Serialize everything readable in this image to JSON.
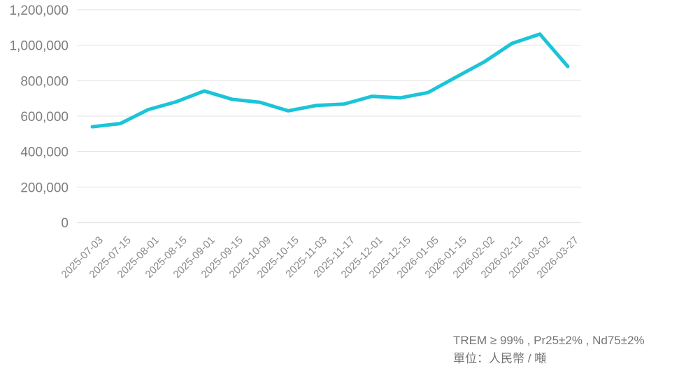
{
  "chart_data": {
    "type": "line",
    "title": "",
    "xlabel": "",
    "ylabel": "",
    "categories": [
      "2025-07-03",
      "2025-07-15",
      "2025-08-01",
      "2025-08-15",
      "2025-09-01",
      "2025-09-15",
      "2025-10-09",
      "2025-10-15",
      "2025-11-03",
      "2025-11-17",
      "2025-12-01",
      "2025-12-15",
      "2026-01-05",
      "2026-01-15",
      "2026-02-02",
      "2026-02-12",
      "2026-03-02",
      "2026-03-27"
    ],
    "values": [
      540000,
      558000,
      637000,
      681000,
      742000,
      695000,
      678000,
      630000,
      660000,
      668000,
      712000,
      703000,
      733000,
      820000,
      905000,
      1010000,
      1063000,
      880000
    ],
    "ylim": [
      0,
      1200000
    ],
    "y_tick_labels": [
      "0",
      "200,000",
      "400,000",
      "600,000",
      "800,000",
      "1,000,000",
      "1,200,000"
    ],
    "grid": true,
    "legend": "none"
  },
  "footer": {
    "spec_line": "TREM ≥ 99% , Pr25±2% , Nd75±2%",
    "unit_line": "單位：人民幣 / 噸"
  },
  "colors": {
    "line": "#1BC4D8",
    "grid": "#E2E2E2",
    "zero_axis": "#D2D2D2",
    "y_tick_text": "#7D7D7D",
    "x_tick_text": "#8A8A8A",
    "footer_text": "#757575",
    "background": "#FFFFFF"
  }
}
